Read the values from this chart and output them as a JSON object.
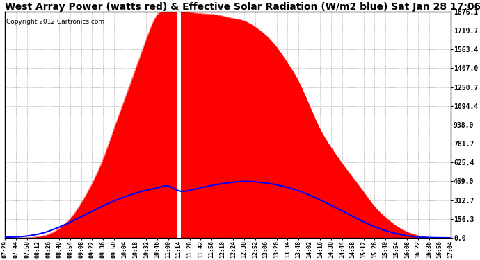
{
  "title": "West Array Power (watts red) & Effective Solar Radiation (W/m2 blue) Sat Jan 28 17:06",
  "copyright": "Copyright 2012 Cartronics.com",
  "y_max": 1876.1,
  "y_min": 0.0,
  "y_ticks": [
    0.0,
    156.3,
    312.7,
    469.0,
    625.4,
    781.7,
    938.0,
    1094.4,
    1250.7,
    1407.0,
    1563.4,
    1719.7,
    1876.1
  ],
  "x_labels": [
    "07:29",
    "07:44",
    "07:58",
    "08:12",
    "08:26",
    "08:40",
    "08:54",
    "09:08",
    "09:22",
    "09:36",
    "09:50",
    "10:04",
    "10:18",
    "10:32",
    "10:46",
    "11:00",
    "11:14",
    "11:28",
    "11:42",
    "11:56",
    "12:10",
    "12:24",
    "12:38",
    "12:52",
    "13:06",
    "13:20",
    "13:34",
    "13:48",
    "14:02",
    "14:16",
    "14:30",
    "14:44",
    "14:58",
    "15:12",
    "15:26",
    "15:40",
    "15:54",
    "16:08",
    "16:22",
    "16:36",
    "16:50",
    "17:04"
  ],
  "bg_color": "#ffffff",
  "grid_color": "#aaaaaa",
  "red_color": "#ff0000",
  "blue_color": "#0000ff",
  "title_fontsize": 10,
  "copyright_fontsize": 6.5,
  "red_power": [
    0,
    0,
    0,
    10,
    30,
    80,
    160,
    290,
    450,
    650,
    900,
    1150,
    1400,
    1650,
    1850,
    1876,
    1876,
    1870,
    1860,
    1855,
    1840,
    1820,
    1800,
    1750,
    1680,
    1580,
    1450,
    1300,
    1100,
    900,
    750,
    620,
    500,
    380,
    260,
    170,
    100,
    50,
    20,
    5,
    0,
    0
  ],
  "blue_solar": [
    5,
    8,
    15,
    30,
    55,
    90,
    130,
    175,
    220,
    265,
    305,
    340,
    370,
    395,
    415,
    430,
    390,
    395,
    415,
    435,
    450,
    462,
    469,
    465,
    455,
    440,
    418,
    390,
    355,
    315,
    270,
    225,
    178,
    133,
    92,
    60,
    35,
    18,
    8,
    3,
    1,
    0
  ],
  "white_spike_index": 16
}
